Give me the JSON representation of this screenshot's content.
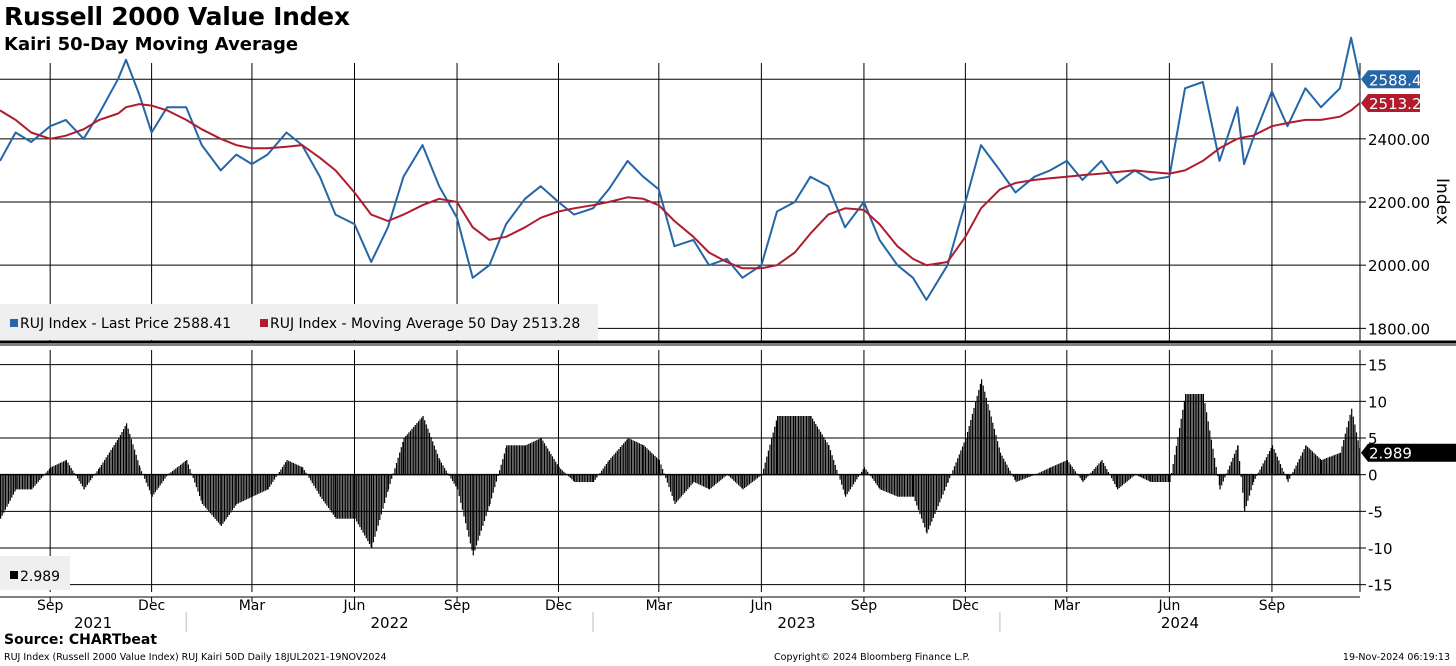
{
  "header": {
    "title": "Russell 2000 Value Index",
    "subtitle": "Kairi 50-Day Moving Average"
  },
  "footer": {
    "source": "Source: CHARTbeat",
    "description": "RUJ Index (Russell 2000 Value Index) RUJ Kairi 50D  Daily 18JUL2021-19NOV2024",
    "copyright": "Copyright© 2024 Bloomberg Finance L.P.",
    "timestamp": "19-Nov-2024 06:19:13"
  },
  "colors": {
    "price": "#2566a8",
    "moving_average": "#b01c2e",
    "kairi": "#000000",
    "grid": "#000000"
  },
  "chart_data": [
    {
      "type": "line",
      "ylabel": "Index",
      "ylim": [
        1760,
        2640
      ],
      "yticks": [
        1800,
        2000,
        2200,
        2400
      ],
      "ytick_labels": [
        "1800.00",
        "2000.00",
        "2200.00",
        "2400.00"
      ],
      "legend_placement": "bottom-left",
      "x": [
        "2021-07-18",
        "2021-08-01",
        "2021-08-15",
        "2021-09-01",
        "2021-09-15",
        "2021-10-01",
        "2021-10-15",
        "2021-11-01",
        "2021-11-08",
        "2021-11-20",
        "2021-12-01",
        "2021-12-15",
        "2022-01-01",
        "2022-01-15",
        "2022-02-01",
        "2022-02-15",
        "2022-03-01",
        "2022-03-15",
        "2022-04-01",
        "2022-04-15",
        "2022-05-01",
        "2022-05-15",
        "2022-06-01",
        "2022-06-16",
        "2022-07-01",
        "2022-07-15",
        "2022-08-01",
        "2022-08-16",
        "2022-09-01",
        "2022-09-15",
        "2022-09-30",
        "2022-10-15",
        "2022-11-01",
        "2022-11-15",
        "2022-12-01",
        "2022-12-15",
        "2023-01-01",
        "2023-01-15",
        "2023-02-01",
        "2023-02-15",
        "2023-03-01",
        "2023-03-15",
        "2023-04-01",
        "2023-04-15",
        "2023-05-01",
        "2023-05-15",
        "2023-06-01",
        "2023-06-15",
        "2023-07-01",
        "2023-07-15",
        "2023-07-31",
        "2023-08-15",
        "2023-09-01",
        "2023-09-15",
        "2023-10-01",
        "2023-10-15",
        "2023-10-27",
        "2023-11-15",
        "2023-12-01",
        "2023-12-15",
        "2024-01-01",
        "2024-01-15",
        "2024-02-01",
        "2024-02-15",
        "2024-03-01",
        "2024-03-15",
        "2024-04-01",
        "2024-04-15",
        "2024-05-01",
        "2024-05-15",
        "2024-06-01",
        "2024-06-15",
        "2024-07-01",
        "2024-07-16",
        "2024-08-01",
        "2024-08-07",
        "2024-08-15",
        "2024-09-01",
        "2024-09-15",
        "2024-10-01",
        "2024-10-15",
        "2024-11-01",
        "2024-11-11",
        "2024-11-19"
      ],
      "series": [
        {
          "name": "RUJ Index - Last Price",
          "last_value": 2588.41,
          "last_label": "2588.41",
          "values": [
            2330,
            2420,
            2390,
            2440,
            2460,
            2400,
            2480,
            2590,
            2650,
            2540,
            2420,
            2500,
            2500,
            2380,
            2300,
            2350,
            2320,
            2350,
            2420,
            2380,
            2280,
            2160,
            2130,
            2010,
            2120,
            2280,
            2380,
            2250,
            2150,
            1960,
            2000,
            2130,
            2210,
            2250,
            2200,
            2160,
            2180,
            2240,
            2330,
            2280,
            2240,
            2060,
            2080,
            2000,
            2020,
            1960,
            2000,
            2170,
            2200,
            2280,
            2250,
            2120,
            2200,
            2080,
            2000,
            1960,
            1890,
            2000,
            2200,
            2380,
            2300,
            2230,
            2280,
            2300,
            2330,
            2270,
            2330,
            2260,
            2300,
            2270,
            2280,
            2560,
            2580,
            2330,
            2500,
            2320,
            2400,
            2550,
            2440,
            2560,
            2500,
            2560,
            2720,
            2588.41
          ]
        },
        {
          "name": "RUJ Index - Moving Average 50 Day",
          "last_value": 2513.28,
          "last_label": "2513.28",
          "values": [
            2490,
            2460,
            2420,
            2400,
            2410,
            2430,
            2460,
            2480,
            2500,
            2510,
            2505,
            2490,
            2460,
            2430,
            2400,
            2380,
            2370,
            2370,
            2375,
            2380,
            2340,
            2300,
            2230,
            2160,
            2140,
            2160,
            2190,
            2210,
            2200,
            2120,
            2080,
            2090,
            2120,
            2150,
            2170,
            2180,
            2190,
            2200,
            2215,
            2210,
            2190,
            2140,
            2090,
            2040,
            2010,
            1990,
            1990,
            2000,
            2040,
            2100,
            2160,
            2180,
            2175,
            2130,
            2060,
            2020,
            2000,
            2010,
            2090,
            2180,
            2240,
            2260,
            2270,
            2275,
            2280,
            2285,
            2290,
            2295,
            2300,
            2295,
            2290,
            2300,
            2330,
            2370,
            2400,
            2405,
            2410,
            2440,
            2450,
            2460,
            2460,
            2470,
            2490,
            2513.28
          ]
        }
      ],
      "legend": [
        {
          "label": "RUJ Index - Last Price 2588.41",
          "color": "#2566a8"
        },
        {
          "label": "RUJ Index - Moving Average 50 Day 2513.28",
          "color": "#b01c2e"
        }
      ]
    },
    {
      "type": "bar",
      "ylim": [
        -16,
        17
      ],
      "yticks": [
        -15,
        -10,
        -5,
        0,
        5,
        10,
        15
      ],
      "ytick_labels": [
        "-15",
        "-10",
        "-5",
        "0",
        "5",
        "10",
        "15"
      ],
      "legend_placement": "bottom-left",
      "x": [
        "2021-07-18",
        "2021-08-01",
        "2021-08-15",
        "2021-09-01",
        "2021-09-15",
        "2021-10-01",
        "2021-10-15",
        "2021-11-01",
        "2021-11-08",
        "2021-11-20",
        "2021-12-01",
        "2021-12-15",
        "2022-01-01",
        "2022-01-15",
        "2022-02-01",
        "2022-02-15",
        "2022-03-01",
        "2022-03-15",
        "2022-04-01",
        "2022-04-15",
        "2022-05-01",
        "2022-05-15",
        "2022-06-01",
        "2022-06-16",
        "2022-07-01",
        "2022-07-15",
        "2022-08-01",
        "2022-08-16",
        "2022-09-01",
        "2022-09-15",
        "2022-09-30",
        "2022-10-15",
        "2022-11-01",
        "2022-11-15",
        "2022-12-01",
        "2022-12-15",
        "2023-01-01",
        "2023-01-15",
        "2023-02-01",
        "2023-02-15",
        "2023-03-01",
        "2023-03-15",
        "2023-04-01",
        "2023-04-15",
        "2023-05-01",
        "2023-05-15",
        "2023-06-01",
        "2023-06-15",
        "2023-07-01",
        "2023-07-15",
        "2023-07-31",
        "2023-08-15",
        "2023-09-01",
        "2023-09-15",
        "2023-10-01",
        "2023-10-15",
        "2023-10-27",
        "2023-11-15",
        "2023-12-01",
        "2023-12-15",
        "2024-01-01",
        "2024-01-15",
        "2024-02-01",
        "2024-02-15",
        "2024-03-01",
        "2024-03-15",
        "2024-04-01",
        "2024-04-15",
        "2024-05-01",
        "2024-05-15",
        "2024-06-01",
        "2024-06-15",
        "2024-07-01",
        "2024-07-16",
        "2024-08-01",
        "2024-08-07",
        "2024-08-15",
        "2024-09-01",
        "2024-09-15",
        "2024-10-01",
        "2024-10-15",
        "2024-11-01",
        "2024-11-11",
        "2024-11-19"
      ],
      "series": [
        {
          "name": "RUJ Kairi 50D",
          "last_value": 2.989,
          "last_label": "2.989",
          "values": [
            -6,
            -2,
            -2,
            1,
            2,
            -2,
            1,
            5,
            7,
            1,
            -3,
            0,
            2,
            -4,
            -7,
            -4,
            -3,
            -2,
            2,
            1,
            -3,
            -6,
            -6,
            -10,
            -2,
            5,
            8,
            2,
            -2,
            -11,
            -4,
            4,
            4,
            5,
            1,
            -1,
            -1,
            2,
            5,
            4,
            2,
            -4,
            -1,
            -2,
            0,
            -2,
            0,
            8,
            8,
            8,
            4,
            -3,
            1,
            -2,
            -3,
            -3,
            -8,
            -1,
            5,
            13,
            3,
            -1,
            0,
            1,
            2,
            -1,
            2,
            -2,
            0,
            -1,
            -1,
            11,
            11,
            -2,
            4,
            -5,
            -1,
            4,
            -1,
            4,
            2,
            3,
            9,
            2.989
          ]
        }
      ],
      "legend": [
        {
          "label": "2.989",
          "color": "#000000"
        }
      ]
    }
  ],
  "time_axis": {
    "month_ticks": [
      {
        "date": "2021-09-01",
        "label": "Sep"
      },
      {
        "date": "2021-12-01",
        "label": "Dec"
      },
      {
        "date": "2022-03-01",
        "label": "Mar"
      },
      {
        "date": "2022-06-01",
        "label": "Jun"
      },
      {
        "date": "2022-09-01",
        "label": "Sep"
      },
      {
        "date": "2022-12-01",
        "label": "Dec"
      },
      {
        "date": "2023-03-01",
        "label": "Mar"
      },
      {
        "date": "2023-06-01",
        "label": "Jun"
      },
      {
        "date": "2023-09-01",
        "label": "Sep"
      },
      {
        "date": "2023-12-01",
        "label": "Dec"
      },
      {
        "date": "2024-03-01",
        "label": "Mar"
      },
      {
        "date": "2024-06-01",
        "label": "Jun"
      },
      {
        "date": "2024-09-01",
        "label": "Sep"
      }
    ],
    "years": [
      {
        "label": "2021",
        "start": "2021-07-18",
        "end": "2022-01-01"
      },
      {
        "label": "2022",
        "start": "2022-01-01",
        "end": "2023-01-01"
      },
      {
        "label": "2023",
        "start": "2023-01-01",
        "end": "2024-01-01"
      },
      {
        "label": "2024",
        "start": "2024-01-01",
        "end": "2024-11-19"
      }
    ],
    "range": [
      "2021-07-18",
      "2024-11-19"
    ]
  }
}
